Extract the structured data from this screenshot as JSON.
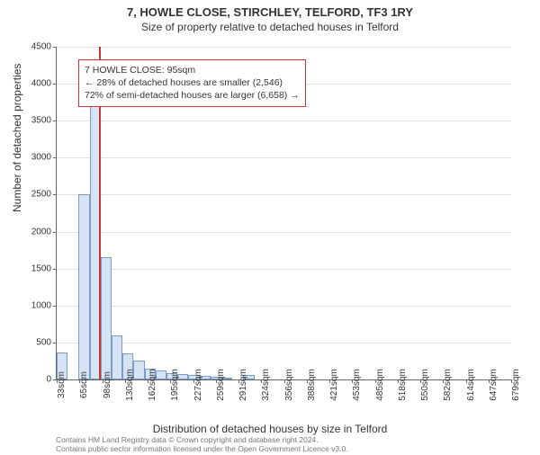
{
  "title": "7, HOWLE CLOSE, STIRCHLEY, TELFORD, TF3 1RY",
  "subtitle": "Size of property relative to detached houses in Telford",
  "ylabel": "Number of detached properties",
  "xlabel": "Distribution of detached houses by size in Telford",
  "annotation": {
    "line1": "7 HOWLE CLOSE: 95sqm",
    "line2": "← 28% of detached houses are smaller (2,546)",
    "line3": "72% of semi-detached houses are larger (6,658) →"
  },
  "chart": {
    "type": "histogram",
    "ylim": [
      0,
      4500
    ],
    "ytick_step": 500,
    "x_range_sqm": [
      33,
      695
    ],
    "bar_color": "#d6e3f5",
    "bar_border": "#7a9cc6",
    "background_color": "#ffffff",
    "grid_color": "#e0e0e0",
    "marker_color": "#cc3333",
    "marker_value_sqm": 95,
    "bin_width_sqm": 16,
    "x_tick_labels": [
      "33sqm",
      "65sqm",
      "98sqm",
      "130sqm",
      "162sqm",
      "195sqm",
      "227sqm",
      "259sqm",
      "291sqm",
      "324sqm",
      "356sqm",
      "388sqm",
      "421sqm",
      "453sqm",
      "485sqm",
      "518sqm",
      "550sqm",
      "582sqm",
      "614sqm",
      "647sqm",
      "679sqm"
    ],
    "values": [
      370,
      0,
      2500,
      3950,
      1650,
      600,
      350,
      250,
      150,
      120,
      90,
      70,
      60,
      50,
      40,
      30,
      0,
      60,
      0,
      0,
      0,
      0,
      0,
      0,
      0,
      0,
      0,
      0,
      0,
      0,
      0,
      0,
      0,
      0,
      0,
      0,
      0,
      0,
      0,
      0,
      0
    ]
  },
  "footer": {
    "line1": "Contains HM Land Registry data © Crown copyright and database right 2024.",
    "line2": "Contains public sector information licensed under the Open Government Licence v3.0."
  }
}
